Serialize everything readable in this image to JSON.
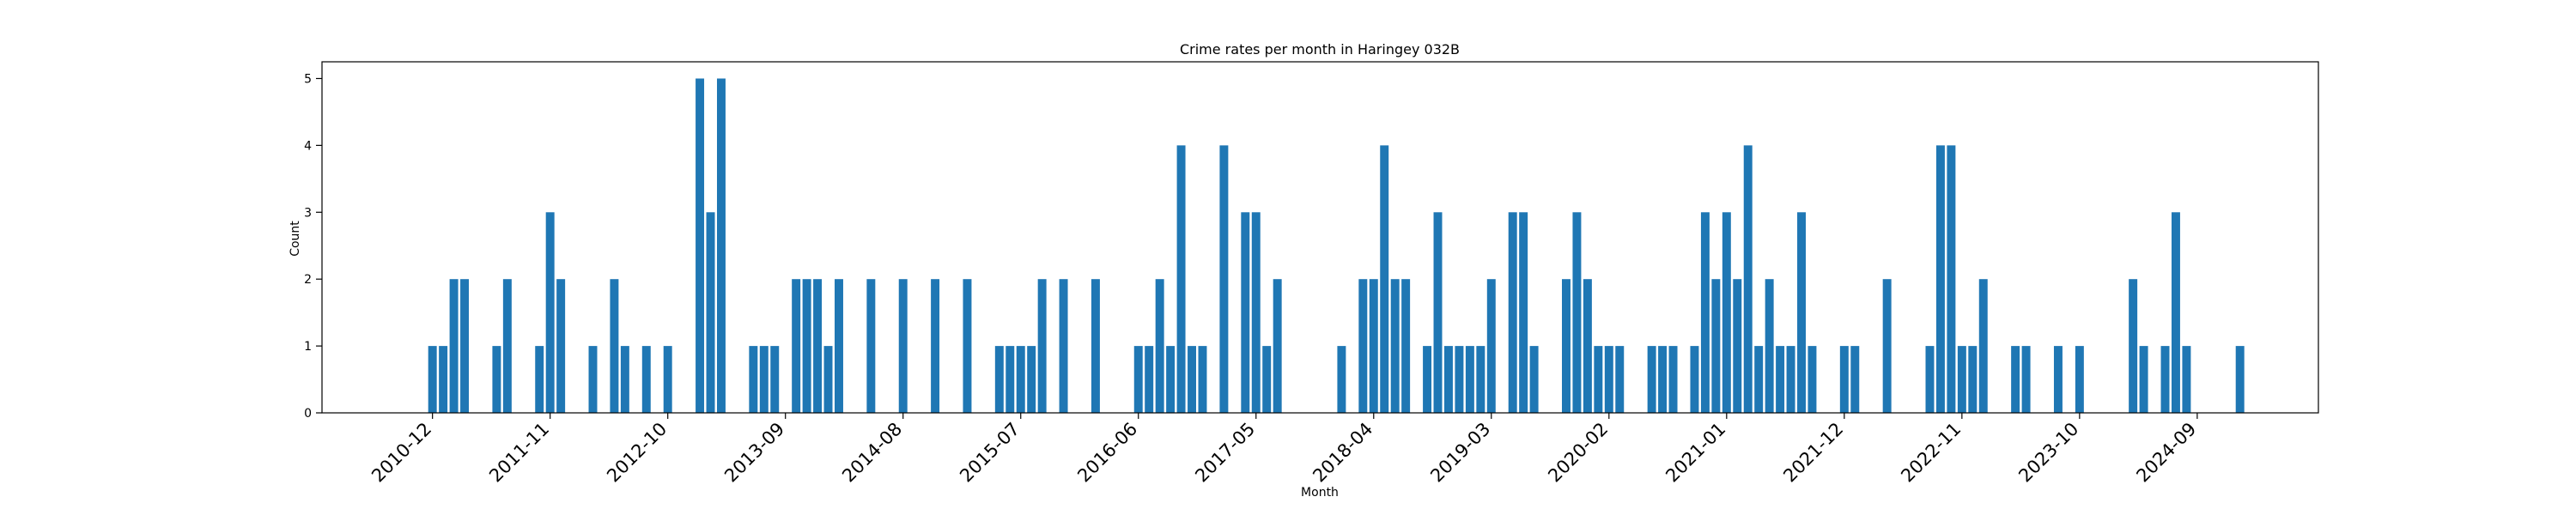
{
  "chart_data": {
    "type": "bar",
    "title": "Crime rates per month in Haringey 032B",
    "xlabel": "Month",
    "ylabel": "Count",
    "ylim": [
      0,
      5.25
    ],
    "yticks": [
      0,
      1,
      2,
      3,
      4,
      5
    ],
    "xlim": [
      -10.33,
      176.33
    ],
    "xticks": [
      {
        "label": "2010-12",
        "index": 0
      },
      {
        "label": "2011-11",
        "index": 11
      },
      {
        "label": "2012-10",
        "index": 22
      },
      {
        "label": "2013-09",
        "index": 33
      },
      {
        "label": "2014-08",
        "index": 44
      },
      {
        "label": "2015-07",
        "index": 55
      },
      {
        "label": "2016-06",
        "index": 66
      },
      {
        "label": "2017-05",
        "index": 77
      },
      {
        "label": "2018-04",
        "index": 88
      },
      {
        "label": "2019-03",
        "index": 99
      },
      {
        "label": "2020-02",
        "index": 110
      },
      {
        "label": "2021-01",
        "index": 121
      },
      {
        "label": "2021-12",
        "index": 132
      },
      {
        "label": "2022-11",
        "index": 143
      },
      {
        "label": "2023-10",
        "index": 154
      },
      {
        "label": "2024-09",
        "index": 165
      }
    ],
    "start_month": "2010-12",
    "bar_color": "#1f77b4",
    "bars": [
      {
        "index": 0,
        "value": 1
      },
      {
        "index": 1,
        "value": 1
      },
      {
        "index": 2,
        "value": 2
      },
      {
        "index": 3,
        "value": 2
      },
      {
        "index": 6,
        "value": 1
      },
      {
        "index": 7,
        "value": 2
      },
      {
        "index": 10,
        "value": 1
      },
      {
        "index": 11,
        "value": 3
      },
      {
        "index": 12,
        "value": 2
      },
      {
        "index": 15,
        "value": 1
      },
      {
        "index": 17,
        "value": 2
      },
      {
        "index": 18,
        "value": 1
      },
      {
        "index": 20,
        "value": 1
      },
      {
        "index": 22,
        "value": 1
      },
      {
        "index": 25,
        "value": 5
      },
      {
        "index": 26,
        "value": 3
      },
      {
        "index": 27,
        "value": 5
      },
      {
        "index": 30,
        "value": 1
      },
      {
        "index": 31,
        "value": 1
      },
      {
        "index": 32,
        "value": 1
      },
      {
        "index": 34,
        "value": 2
      },
      {
        "index": 35,
        "value": 2
      },
      {
        "index": 36,
        "value": 2
      },
      {
        "index": 37,
        "value": 1
      },
      {
        "index": 38,
        "value": 2
      },
      {
        "index": 41,
        "value": 2
      },
      {
        "index": 44,
        "value": 2
      },
      {
        "index": 47,
        "value": 2
      },
      {
        "index": 50,
        "value": 2
      },
      {
        "index": 53,
        "value": 1
      },
      {
        "index": 54,
        "value": 1
      },
      {
        "index": 55,
        "value": 1
      },
      {
        "index": 56,
        "value": 1
      },
      {
        "index": 57,
        "value": 2
      },
      {
        "index": 59,
        "value": 2
      },
      {
        "index": 62,
        "value": 2
      },
      {
        "index": 66,
        "value": 1
      },
      {
        "index": 67,
        "value": 1
      },
      {
        "index": 68,
        "value": 2
      },
      {
        "index": 69,
        "value": 1
      },
      {
        "index": 70,
        "value": 4
      },
      {
        "index": 71,
        "value": 1
      },
      {
        "index": 72,
        "value": 1
      },
      {
        "index": 74,
        "value": 4
      },
      {
        "index": 76,
        "value": 3
      },
      {
        "index": 77,
        "value": 3
      },
      {
        "index": 78,
        "value": 1
      },
      {
        "index": 79,
        "value": 2
      },
      {
        "index": 85,
        "value": 1
      },
      {
        "index": 87,
        "value": 2
      },
      {
        "index": 88,
        "value": 2
      },
      {
        "index": 89,
        "value": 4
      },
      {
        "index": 90,
        "value": 2
      },
      {
        "index": 91,
        "value": 2
      },
      {
        "index": 93,
        "value": 1
      },
      {
        "index": 94,
        "value": 3
      },
      {
        "index": 95,
        "value": 1
      },
      {
        "index": 96,
        "value": 1
      },
      {
        "index": 97,
        "value": 1
      },
      {
        "index": 98,
        "value": 1
      },
      {
        "index": 99,
        "value": 2
      },
      {
        "index": 101,
        "value": 3
      },
      {
        "index": 102,
        "value": 3
      },
      {
        "index": 103,
        "value": 1
      },
      {
        "index": 106,
        "value": 2
      },
      {
        "index": 107,
        "value": 3
      },
      {
        "index": 108,
        "value": 2
      },
      {
        "index": 109,
        "value": 1
      },
      {
        "index": 110,
        "value": 1
      },
      {
        "index": 111,
        "value": 1
      },
      {
        "index": 114,
        "value": 1
      },
      {
        "index": 115,
        "value": 1
      },
      {
        "index": 116,
        "value": 1
      },
      {
        "index": 118,
        "value": 1
      },
      {
        "index": 119,
        "value": 3
      },
      {
        "index": 120,
        "value": 2
      },
      {
        "index": 121,
        "value": 3
      },
      {
        "index": 122,
        "value": 2
      },
      {
        "index": 123,
        "value": 4
      },
      {
        "index": 124,
        "value": 1
      },
      {
        "index": 125,
        "value": 2
      },
      {
        "index": 126,
        "value": 1
      },
      {
        "index": 127,
        "value": 1
      },
      {
        "index": 128,
        "value": 3
      },
      {
        "index": 129,
        "value": 1
      },
      {
        "index": 132,
        "value": 1
      },
      {
        "index": 133,
        "value": 1
      },
      {
        "index": 136,
        "value": 2
      },
      {
        "index": 140,
        "value": 1
      },
      {
        "index": 141,
        "value": 4
      },
      {
        "index": 142,
        "value": 4
      },
      {
        "index": 143,
        "value": 1
      },
      {
        "index": 144,
        "value": 1
      },
      {
        "index": 145,
        "value": 2
      },
      {
        "index": 148,
        "value": 1
      },
      {
        "index": 149,
        "value": 1
      },
      {
        "index": 152,
        "value": 1
      },
      {
        "index": 154,
        "value": 1
      },
      {
        "index": 159,
        "value": 2
      },
      {
        "index": 160,
        "value": 1
      },
      {
        "index": 162,
        "value": 1
      },
      {
        "index": 163,
        "value": 3
      },
      {
        "index": 164,
        "value": 1
      },
      {
        "index": 169,
        "value": 1
      }
    ]
  }
}
